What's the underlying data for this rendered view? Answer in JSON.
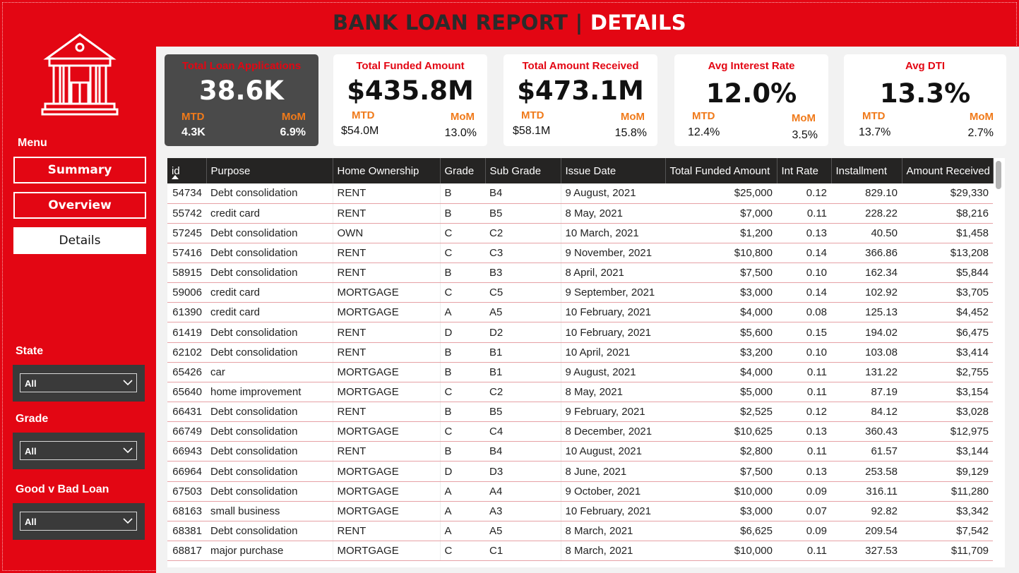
{
  "header": {
    "title_left": "BANK LOAN REPORT",
    "separator": " | ",
    "title_right": "DETAILS"
  },
  "sidebar": {
    "menu_label": "Menu",
    "nav": [
      {
        "label": "Summary",
        "active": false
      },
      {
        "label": "Overview",
        "active": false
      },
      {
        "label": "Details",
        "active": true
      }
    ],
    "filters": [
      {
        "label": "State",
        "value": "All"
      },
      {
        "label": "Grade",
        "value": "All"
      },
      {
        "label": "Good v Bad Loan",
        "value": "All"
      }
    ]
  },
  "kpis": [
    {
      "title": "Total Loan Applications",
      "value": "38.6K",
      "mtd_label": "MTD",
      "mtd": "4.3K",
      "mom_label": "MoM",
      "mom": "6.9%"
    },
    {
      "title": "Total Funded Amount",
      "value": "$435.8M",
      "mtd_label": "MTD",
      "mtd": "$54.0M",
      "mom_label": "MoM",
      "mom": "13.0%"
    },
    {
      "title": "Total Amount Received",
      "value": "$473.1M",
      "mtd_label": "MTD",
      "mtd": "$58.1M",
      "mom_label": "MoM",
      "mom": "15.8%"
    },
    {
      "title": "Avg Interest Rate",
      "value": "12.0%",
      "mtd_label": "MTD",
      "mtd": "12.4%",
      "mom_label": "MoM",
      "mom": "3.5%"
    },
    {
      "title": "Avg DTI",
      "value": "13.3%",
      "mtd_label": "MTD",
      "mtd": "13.7%",
      "mom_label": "MoM",
      "mom": "2.7%"
    }
  ],
  "table": {
    "columns": [
      "id",
      "Purpose",
      "Home Ownership",
      "Grade",
      "Sub Grade",
      "Issue Date",
      "Total Funded Amount",
      "Int Rate",
      "Installment",
      "Amount Received"
    ],
    "rows": [
      [
        "54734",
        "Debt consolidation",
        "RENT",
        "B",
        "B4",
        "9 August, 2021",
        "$25,000",
        "0.12",
        "829.10",
        "$29,330"
      ],
      [
        "55742",
        "credit card",
        "RENT",
        "B",
        "B5",
        "8 May, 2021",
        "$7,000",
        "0.11",
        "228.22",
        "$8,216"
      ],
      [
        "57245",
        "Debt consolidation",
        "OWN",
        "C",
        "C2",
        "10 March, 2021",
        "$1,200",
        "0.13",
        "40.50",
        "$1,458"
      ],
      [
        "57416",
        "Debt consolidation",
        "RENT",
        "C",
        "C3",
        "9 November, 2021",
        "$10,800",
        "0.14",
        "366.86",
        "$13,208"
      ],
      [
        "58915",
        "Debt consolidation",
        "RENT",
        "B",
        "B3",
        "8 April, 2021",
        "$7,500",
        "0.10",
        "162.34",
        "$5,844"
      ],
      [
        "59006",
        "credit card",
        "MORTGAGE",
        "C",
        "C5",
        "9 September, 2021",
        "$3,000",
        "0.14",
        "102.92",
        "$3,705"
      ],
      [
        "61390",
        "credit card",
        "MORTGAGE",
        "A",
        "A5",
        "10 February, 2021",
        "$4,000",
        "0.08",
        "125.13",
        "$4,452"
      ],
      [
        "61419",
        "Debt consolidation",
        "RENT",
        "D",
        "D2",
        "10 February, 2021",
        "$5,600",
        "0.15",
        "194.02",
        "$6,475"
      ],
      [
        "62102",
        "Debt consolidation",
        "RENT",
        "B",
        "B1",
        "10 April, 2021",
        "$3,200",
        "0.10",
        "103.08",
        "$3,414"
      ],
      [
        "65426",
        "car",
        "MORTGAGE",
        "B",
        "B1",
        "9 August, 2021",
        "$4,000",
        "0.11",
        "131.22",
        "$2,755"
      ],
      [
        "65640",
        "home improvement",
        "MORTGAGE",
        "C",
        "C2",
        "8 May, 2021",
        "$5,000",
        "0.11",
        "87.19",
        "$3,154"
      ],
      [
        "66431",
        "Debt consolidation",
        "RENT",
        "B",
        "B5",
        "9 February, 2021",
        "$2,525",
        "0.12",
        "84.12",
        "$3,028"
      ],
      [
        "66749",
        "Debt consolidation",
        "MORTGAGE",
        "C",
        "C4",
        "8 December, 2021",
        "$10,625",
        "0.13",
        "360.43",
        "$12,975"
      ],
      [
        "66943",
        "Debt consolidation",
        "RENT",
        "B",
        "B4",
        "10 August, 2021",
        "$2,800",
        "0.11",
        "61.57",
        "$3,144"
      ],
      [
        "66964",
        "Debt consolidation",
        "MORTGAGE",
        "D",
        "D3",
        "8 June, 2021",
        "$7,500",
        "0.13",
        "253.58",
        "$9,129"
      ],
      [
        "67503",
        "Debt consolidation",
        "MORTGAGE",
        "A",
        "A4",
        "9 October, 2021",
        "$10,000",
        "0.09",
        "316.11",
        "$11,280"
      ],
      [
        "68163",
        "small business",
        "MORTGAGE",
        "A",
        "A3",
        "10 February, 2021",
        "$3,000",
        "0.07",
        "92.82",
        "$3,342"
      ],
      [
        "68381",
        "Debt consolidation",
        "RENT",
        "A",
        "A5",
        "8 March, 2021",
        "$6,625",
        "0.09",
        "209.54",
        "$7,542"
      ],
      [
        "68817",
        "major purchase",
        "MORTGAGE",
        "C",
        "C1",
        "8 March, 2021",
        "$10,000",
        "0.11",
        "327.53",
        "$11,709"
      ]
    ]
  },
  "colors": {
    "brand_red": "#e30613",
    "mtd_orange": "#f07a1a",
    "dark_panel": "#4a4a4a",
    "header_dark": "#252423"
  },
  "icons": {
    "logo": "bank-building-icon",
    "dropdown": "chevron-down-icon",
    "sort": "sort-ascending-icon"
  }
}
